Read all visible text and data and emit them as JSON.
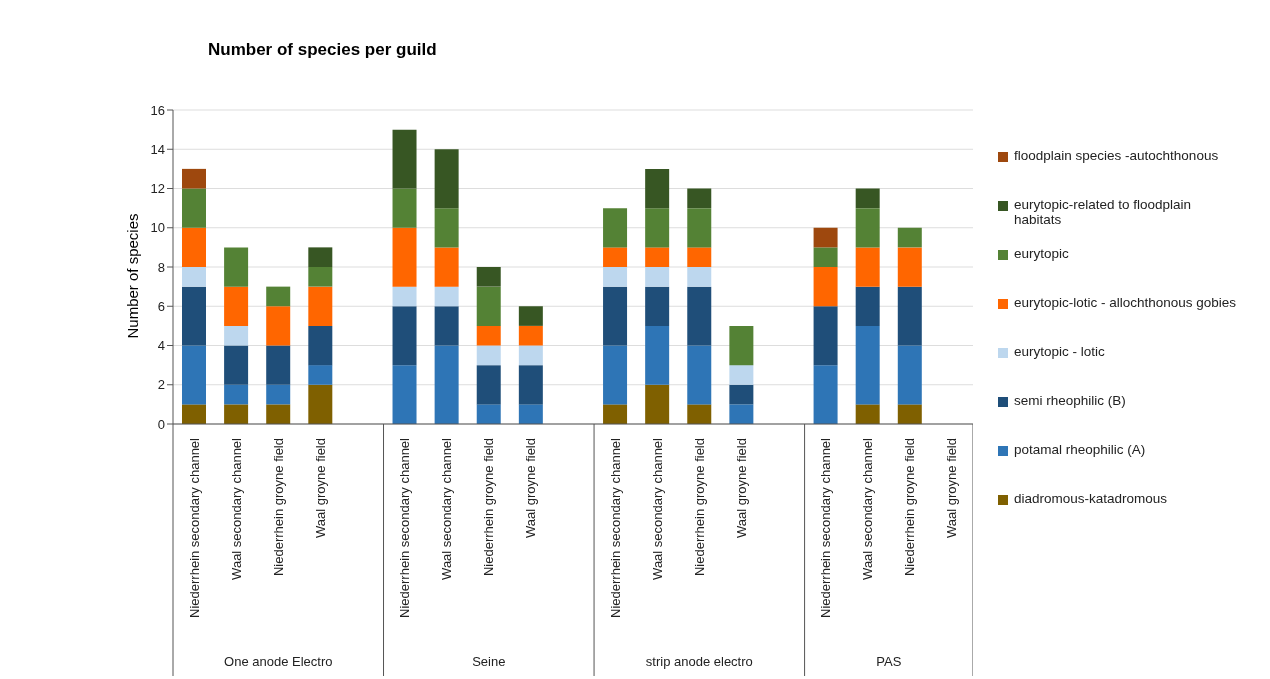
{
  "chart_data": {
    "type": "bar",
    "stacked": true,
    "title": "Number of species per guild",
    "ylabel": "Number of species",
    "categories": [
      "Niederrhein secondary channel",
      "Waal secondary channel",
      "Niederrhein groyne field",
      "Waal groyne field",
      null,
      "Niederrhein secondary channel",
      "Waal secondary channel",
      "Niederrhein groyne field",
      "Waal groyne field",
      null,
      "Niederrhein secondary channel",
      "Waal secondary channel",
      "Niederrhein groyne field",
      "Waal groyne field",
      null,
      "Niederrhein secondary channel",
      "Waal secondary channel",
      "Niederrhein groyne field",
      "Waal groyne field"
    ],
    "annotations": [
      "One anode Electro",
      "Seine",
      "strip anode electro",
      "PAS"
    ],
    "series": [
      {
        "name": "diadromous-katadromous",
        "color": "#7f6000",
        "values": [
          1,
          1,
          1,
          2,
          null,
          0,
          0,
          0,
          0,
          null,
          1,
          2,
          1,
          0,
          null,
          0,
          1,
          1,
          0
        ]
      },
      {
        "name": "potamal rheophilic (A)",
        "color": "#2e75b6",
        "values": [
          3,
          1,
          1,
          1,
          null,
          3,
          4,
          1,
          1,
          null,
          3,
          3,
          3,
          1,
          null,
          3,
          4,
          3,
          0
        ]
      },
      {
        "name": "semi rheophilic (B)",
        "color": "#1f4e79",
        "values": [
          3,
          2,
          2,
          2,
          null,
          3,
          2,
          2,
          2,
          null,
          3,
          2,
          3,
          1,
          null,
          3,
          2,
          3,
          0
        ]
      },
      {
        "name": "eurytopic - lotic",
        "color": "#bdd7ee",
        "values": [
          1,
          1,
          0,
          0,
          null,
          1,
          1,
          1,
          1,
          null,
          1,
          1,
          1,
          1,
          null,
          0,
          0,
          0,
          0
        ]
      },
      {
        "name": "eurytopic-lotic - allochthonous gobies",
        "color": "#ff6600",
        "values": [
          2,
          2,
          2,
          2,
          null,
          3,
          2,
          1,
          1,
          null,
          1,
          1,
          1,
          0,
          null,
          2,
          2,
          2,
          0
        ]
      },
      {
        "name": "eurytopic",
        "color": "#548235",
        "values": [
          2,
          2,
          1,
          1,
          null,
          2,
          2,
          2,
          0,
          null,
          2,
          2,
          2,
          2,
          null,
          1,
          2,
          1,
          0
        ]
      },
      {
        "name": "eurytopic-related to floodplain habitats",
        "color": "#375623",
        "values": [
          0,
          0,
          0,
          1,
          null,
          3,
          3,
          1,
          1,
          null,
          0,
          2,
          1,
          0,
          null,
          0,
          1,
          0,
          0
        ]
      },
      {
        "name": "floodplain species -autochthonous",
        "color": "#9e480e",
        "values": [
          1,
          0,
          0,
          0,
          null,
          0,
          0,
          0,
          0,
          null,
          0,
          0,
          0,
          0,
          null,
          1,
          0,
          0,
          0
        ]
      }
    ],
    "ylim": [
      0,
      16
    ],
    "yticks": [
      0,
      2,
      4,
      6,
      8,
      10,
      12,
      14,
      16
    ],
    "grid": "y",
    "legend": "right"
  }
}
